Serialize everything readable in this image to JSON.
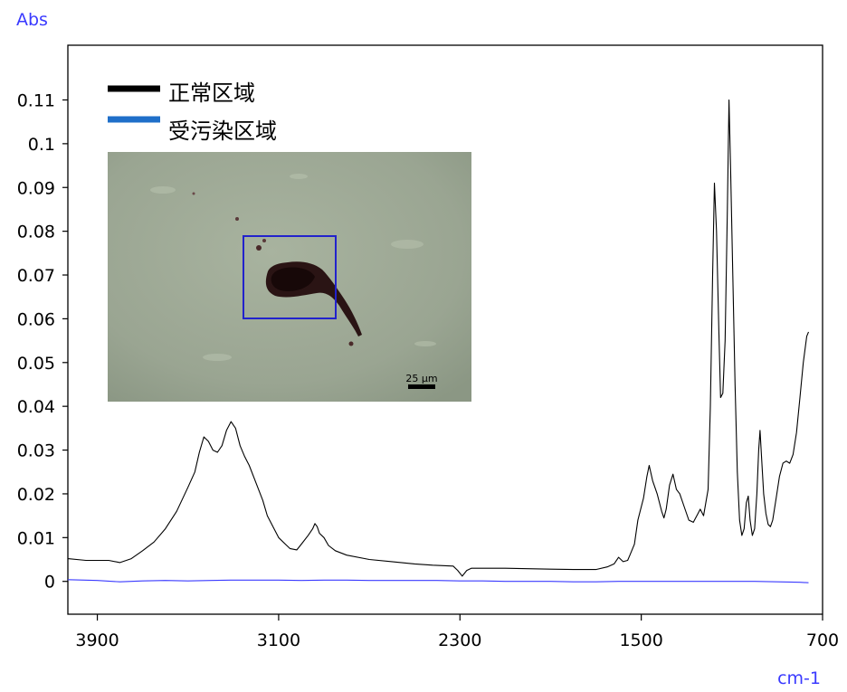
{
  "chart_data": {
    "type": "line",
    "title": "",
    "xlabel": "cm-1",
    "ylabel": "Abs",
    "x_reversed": true,
    "xlim": [
      4030,
      700
    ],
    "ylim": [
      -0.0075,
      0.1225
    ],
    "xticks": [
      3900,
      3100,
      2300,
      1500,
      700
    ],
    "yticks": [
      {
        "value": 0.11,
        "label": "0.11"
      },
      {
        "value": 0.1,
        "label": "0.1"
      },
      {
        "value": 0.09,
        "label": "0.09"
      },
      {
        "value": 0.08,
        "label": "0.08"
      },
      {
        "value": 0.07,
        "label": "0.07"
      },
      {
        "value": 0.06,
        "label": "0.06"
      },
      {
        "value": 0.05,
        "label": "0.05"
      },
      {
        "value": 0.04,
        "label": "0.04"
      },
      {
        "value": 0.03,
        "label": "0.03"
      },
      {
        "value": 0.02,
        "label": "0.02"
      },
      {
        "value": 0.01,
        "label": "0.01"
      },
      {
        "value": 0.0,
        "label": "0"
      }
    ],
    "grid": false,
    "legend_position": "top-left",
    "series": [
      {
        "name": "正常区域",
        "color": "#000000",
        "points": [
          [
            4030,
            0.0052
          ],
          [
            3950,
            0.0048
          ],
          [
            3850,
            0.0048
          ],
          [
            3800,
            0.0043
          ],
          [
            3750,
            0.0052
          ],
          [
            3700,
            0.007
          ],
          [
            3650,
            0.009
          ],
          [
            3600,
            0.012
          ],
          [
            3550,
            0.016
          ],
          [
            3500,
            0.0215
          ],
          [
            3470,
            0.025
          ],
          [
            3450,
            0.0295
          ],
          [
            3430,
            0.033
          ],
          [
            3410,
            0.032
          ],
          [
            3390,
            0.03
          ],
          [
            3370,
            0.0295
          ],
          [
            3350,
            0.031
          ],
          [
            3330,
            0.0345
          ],
          [
            3310,
            0.0365
          ],
          [
            3290,
            0.035
          ],
          [
            3270,
            0.031
          ],
          [
            3250,
            0.0285
          ],
          [
            3230,
            0.0265
          ],
          [
            3200,
            0.0225
          ],
          [
            3170,
            0.0185
          ],
          [
            3150,
            0.015
          ],
          [
            3120,
            0.012
          ],
          [
            3100,
            0.01
          ],
          [
            3070,
            0.0085
          ],
          [
            3050,
            0.0075
          ],
          [
            3020,
            0.0072
          ],
          [
            3000,
            0.0085
          ],
          [
            2970,
            0.0105
          ],
          [
            2950,
            0.012
          ],
          [
            2940,
            0.0132
          ],
          [
            2930,
            0.0125
          ],
          [
            2920,
            0.011
          ],
          [
            2900,
            0.01
          ],
          [
            2880,
            0.0082
          ],
          [
            2850,
            0.007
          ],
          [
            2800,
            0.006
          ],
          [
            2700,
            0.005
          ],
          [
            2600,
            0.0045
          ],
          [
            2500,
            0.004
          ],
          [
            2420,
            0.0037
          ],
          [
            2330,
            0.0035
          ],
          [
            2310,
            0.0025
          ],
          [
            2290,
            0.0012
          ],
          [
            2270,
            0.0025
          ],
          [
            2250,
            0.003
          ],
          [
            2100,
            0.003
          ],
          [
            2000,
            0.0029
          ],
          [
            1900,
            0.0028
          ],
          [
            1800,
            0.0027
          ],
          [
            1700,
            0.0027
          ],
          [
            1650,
            0.0033
          ],
          [
            1620,
            0.004
          ],
          [
            1600,
            0.0055
          ],
          [
            1580,
            0.0045
          ],
          [
            1560,
            0.0048
          ],
          [
            1550,
            0.006
          ],
          [
            1530,
            0.0085
          ],
          [
            1515,
            0.014
          ],
          [
            1500,
            0.017
          ],
          [
            1490,
            0.019
          ],
          [
            1475,
            0.024
          ],
          [
            1465,
            0.0265
          ],
          [
            1450,
            0.023
          ],
          [
            1430,
            0.02
          ],
          [
            1410,
            0.016
          ],
          [
            1400,
            0.0145
          ],
          [
            1390,
            0.0165
          ],
          [
            1375,
            0.022
          ],
          [
            1360,
            0.0245
          ],
          [
            1345,
            0.021
          ],
          [
            1330,
            0.02
          ],
          [
            1310,
            0.017
          ],
          [
            1290,
            0.014
          ],
          [
            1270,
            0.0135
          ],
          [
            1250,
            0.0155
          ],
          [
            1240,
            0.0165
          ],
          [
            1225,
            0.015
          ],
          [
            1205,
            0.021
          ],
          [
            1195,
            0.04
          ],
          [
            1185,
            0.07
          ],
          [
            1177,
            0.091
          ],
          [
            1168,
            0.08
          ],
          [
            1158,
            0.058
          ],
          [
            1150,
            0.042
          ],
          [
            1140,
            0.043
          ],
          [
            1130,
            0.055
          ],
          [
            1120,
            0.085
          ],
          [
            1113,
            0.11
          ],
          [
            1106,
            0.095
          ],
          [
            1096,
            0.07
          ],
          [
            1086,
            0.045
          ],
          [
            1076,
            0.025
          ],
          [
            1066,
            0.014
          ],
          [
            1056,
            0.0105
          ],
          [
            1046,
            0.012
          ],
          [
            1036,
            0.018
          ],
          [
            1028,
            0.0195
          ],
          [
            1020,
            0.014
          ],
          [
            1010,
            0.0105
          ],
          [
            1000,
            0.012
          ],
          [
            990,
            0.02
          ],
          [
            982,
            0.03
          ],
          [
            976,
            0.0345
          ],
          [
            970,
            0.029
          ],
          [
            960,
            0.02
          ],
          [
            950,
            0.0155
          ],
          [
            940,
            0.013
          ],
          [
            930,
            0.0125
          ],
          [
            920,
            0.014
          ],
          [
            905,
            0.019
          ],
          [
            890,
            0.024
          ],
          [
            875,
            0.027
          ],
          [
            860,
            0.0275
          ],
          [
            845,
            0.027
          ],
          [
            830,
            0.029
          ],
          [
            815,
            0.034
          ],
          [
            800,
            0.042
          ],
          [
            785,
            0.05
          ],
          [
            770,
            0.056
          ],
          [
            762,
            0.057
          ]
        ]
      },
      {
        "name": "受污染区域",
        "color": "#3a3aff",
        "points": [
          [
            4030,
            0.0004
          ],
          [
            3900,
            0.0002
          ],
          [
            3800,
            -0.0001
          ],
          [
            3700,
            0.0001
          ],
          [
            3600,
            0.0002
          ],
          [
            3500,
            0.0001
          ],
          [
            3400,
            0.0002
          ],
          [
            3300,
            0.0003
          ],
          [
            3200,
            0.0003
          ],
          [
            3100,
            0.0003
          ],
          [
            3000,
            0.0002
          ],
          [
            2900,
            0.0003
          ],
          [
            2800,
            0.0003
          ],
          [
            2700,
            0.0002
          ],
          [
            2600,
            0.0002
          ],
          [
            2500,
            0.0002
          ],
          [
            2400,
            0.0002
          ],
          [
            2300,
            0.0001
          ],
          [
            2200,
            0.0001
          ],
          [
            2100,
            0.0
          ],
          [
            2000,
            0.0
          ],
          [
            1900,
            0.0
          ],
          [
            1800,
            -0.0001
          ],
          [
            1700,
            -0.0001
          ],
          [
            1600,
            0.0
          ],
          [
            1500,
            0.0
          ],
          [
            1400,
            0.0
          ],
          [
            1300,
            0.0
          ],
          [
            1200,
            0.0
          ],
          [
            1100,
            0.0
          ],
          [
            1000,
            0.0
          ],
          [
            900,
            -0.0001
          ],
          [
            800,
            -0.0002
          ],
          [
            762,
            -0.0003
          ]
        ]
      }
    ]
  },
  "inset": {
    "scale_label": "25 µm"
  }
}
